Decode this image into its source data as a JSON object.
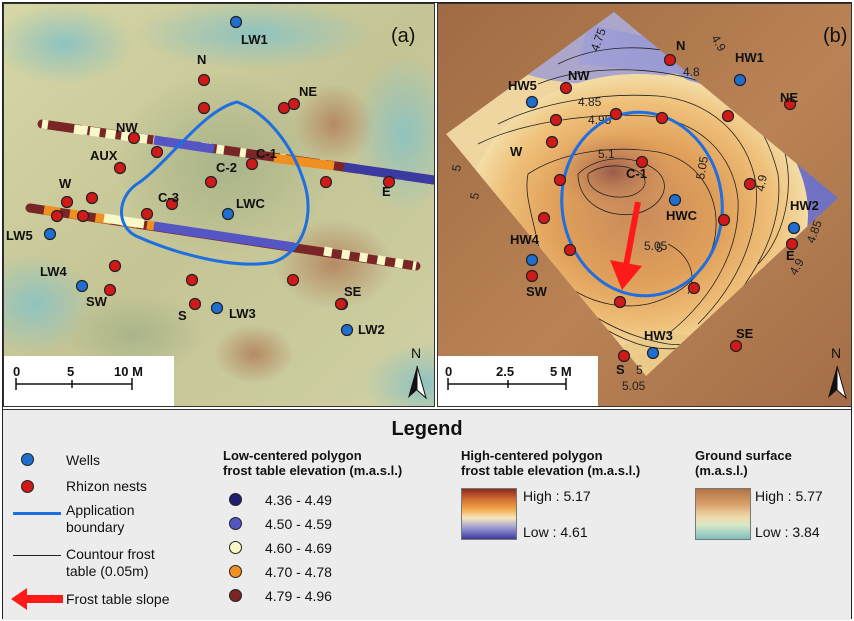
{
  "panel_a": {
    "label": "(a)",
    "wells": [
      "LW1",
      "LWC",
      "LW5",
      "LW4",
      "LW3",
      "LW2"
    ],
    "nests": [
      "N",
      "NE",
      "NW",
      "AUX",
      "C-1",
      "C-2",
      "C-3",
      "W",
      "E",
      "SW",
      "S",
      "SE"
    ],
    "scale": {
      "ticks": [
        "0",
        "5",
        "10 M"
      ]
    },
    "north": "N"
  },
  "panel_b": {
    "label": "(b)",
    "wells": [
      "HW1",
      "HW5",
      "HWC",
      "HW2",
      "HW4",
      "HW3"
    ],
    "nests": [
      "N",
      "NW",
      "NE",
      "W",
      "C-1",
      "E",
      "SW",
      "S",
      "SE"
    ],
    "contours": [
      "4.75",
      "4.9",
      "4.8",
      "4.85",
      "4.95",
      "5.1",
      "5.05",
      "5.05",
      "4.9",
      "4.85",
      "4.9",
      "5",
      "5",
      "5.05",
      "5",
      "5"
    ],
    "scale": {
      "ticks": [
        "0",
        "2.5",
        "5 M"
      ]
    },
    "north": "N"
  },
  "legend": {
    "title": "Legend",
    "wells": "Wells",
    "rhizon": "Rhizon nests",
    "boundary": [
      "Application",
      "boundary"
    ],
    "contour": [
      "Countour frost",
      "table (0.05m)"
    ],
    "slope": "Frost table slope",
    "low_centered": {
      "title": [
        "Low-centered polygon",
        "frost table elevation (m.a.s.l.)"
      ],
      "classes": [
        {
          "label": "4.36 - 4.49",
          "color": "#1f1f6e"
        },
        {
          "label": "4.50 - 4.59",
          "color": "#5555c4"
        },
        {
          "label": "4.60 - 4.69",
          "color": "#f8f8c8"
        },
        {
          "label": "4.70 - 4.78",
          "color": "#f09020"
        },
        {
          "label": "4.79 - 4.96",
          "color": "#7a2626"
        }
      ]
    },
    "high_centered": {
      "title": [
        "High-centered polygon",
        "frost table elevation (m.a.s.l.)"
      ],
      "high": "High : 5.17",
      "low": "Low : 4.61"
    },
    "ground": {
      "title": [
        "Ground surface",
        "(m.a.s.l.)"
      ],
      "high": "High : 5.77",
      "low": "Low : 3.84"
    }
  },
  "colors": {
    "well": "#1e6fd0",
    "nest": "#d01a1a",
    "boundary": "#1f6fe0",
    "arrow": "#ff1a1a"
  }
}
